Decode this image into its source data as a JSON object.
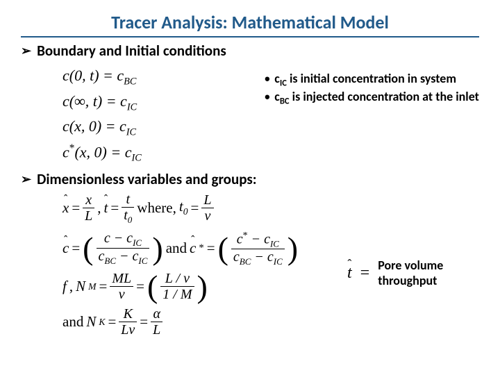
{
  "title": "Tracer Analysis: Mathematical Model",
  "sections": {
    "boundary": {
      "heading": "Boundary and Initial conditions",
      "equations": {
        "bc0": "c(0, t) = c",
        "bc0_sub": "BC",
        "bcinf": "c(∞, t) = c",
        "bcinf_sub": "IC",
        "ic": "c(x, 0) = c",
        "ic_sub": "IC",
        "icstar_pre": "c",
        "icstar_post": "(x, 0) = c",
        "icstar_sub": "IC"
      },
      "descriptions": {
        "d1_pre": "c",
        "d1_sub": "IC",
        "d1_post": " is initial concentration in system",
        "d2_pre": "c",
        "d2_sub": "BC",
        "d2_post": " is injected concentration at the inlet"
      }
    },
    "dimless": {
      "heading": "Dimensionless variables and groups:",
      "line1": {
        "xhat_eq_pre": "x",
        "xhat_frac_num": "x",
        "xhat_frac_den": "L",
        "comma": ",",
        "that_eq_pre": "t",
        "that_frac_num": "t",
        "that_frac_den_t": "t",
        "that_frac_den_sub": "0",
        "where": " where, ",
        "t0_lhs": "t",
        "t0_sub": "0",
        "t0_frac_num": "L",
        "t0_frac_den": "v"
      },
      "line2": {
        "chat": "c",
        "chat_num_left": "c − c",
        "chat_num_sub": "IC",
        "chat_den_left": "c",
        "chat_den_sub1": "BC",
        "chat_den_mid": " − c",
        "chat_den_sub2": "IC",
        "and": " and ",
        "chatstar": "c",
        "star_num_left": "c",
        "star_num_mid": " − c",
        "star_num_sub": "IC",
        "star_den_left": "c",
        "star_den_sub1": "BC",
        "star_den_mid": " − c",
        "star_den_sub2": "IC"
      },
      "line3": {
        "lhs_f": "f",
        "lhs_sep": ", ",
        "lhs_N": "N",
        "lhs_sub": "M",
        "frac1_num": "ML",
        "frac1_den": "v",
        "frac2_num_l": "L / v",
        "frac2_den_l": "1 / M"
      },
      "line4": {
        "and": "and ",
        "N": "N",
        "Nsub": "K",
        "frac1_num": "K",
        "frac1_den": "Lv",
        "frac2_num": "α",
        "frac2_den": "L"
      },
      "right_note": {
        "that": "t",
        "eq": "=",
        "text1": "Pore volume",
        "text2": "throughput"
      }
    }
  },
  "colors": {
    "title": "#215a8a",
    "text": "#000000",
    "bg": "#ffffff"
  },
  "fonts": {
    "title_size": 26,
    "heading_size": 21,
    "body_size": 18,
    "math_size": 21
  }
}
